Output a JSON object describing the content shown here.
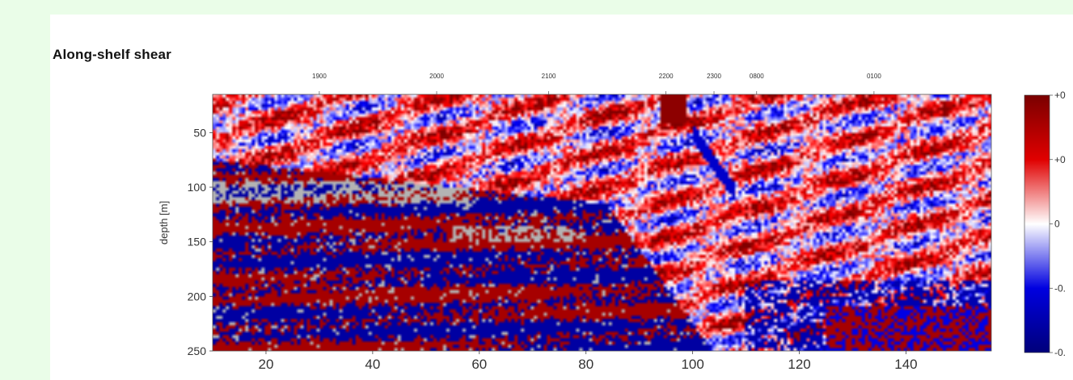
{
  "panel": {
    "title": "Along-shelf shear"
  },
  "chart_data": {
    "type": "heatmap",
    "title": "Along-shelf shear",
    "xlabel": "",
    "ylabel": "depth [m]",
    "xlim": [
      10,
      156
    ],
    "ylim": [
      250,
      15
    ],
    "x_ticks": [
      20,
      40,
      60,
      80,
      100,
      120,
      140
    ],
    "y_ticks": [
      50,
      100,
      150,
      200,
      250
    ],
    "top_ticks": [
      {
        "label": "1900",
        "x": 30
      },
      {
        "label": "2000",
        "x": 52
      },
      {
        "label": "2100",
        "x": 73
      },
      {
        "label": "2200",
        "x": 95
      },
      {
        "label": "2300",
        "x": 104
      },
      {
        "label": "0800",
        "x": 112
      },
      {
        "label": "0100",
        "x": 134
      }
    ],
    "colorbar": {
      "colormap": "seismic",
      "labels": [
        "+0",
        "+0",
        "0",
        "-0.",
        "-0."
      ],
      "label_values": [
        1,
        0.5,
        0,
        -0.5,
        -1
      ],
      "colors": [
        "#800000",
        "#d40000",
        "#ffffff",
        "#0000d4",
        "#00007a"
      ]
    },
    "missing_color": "#b3b3b3",
    "grid": false
  }
}
